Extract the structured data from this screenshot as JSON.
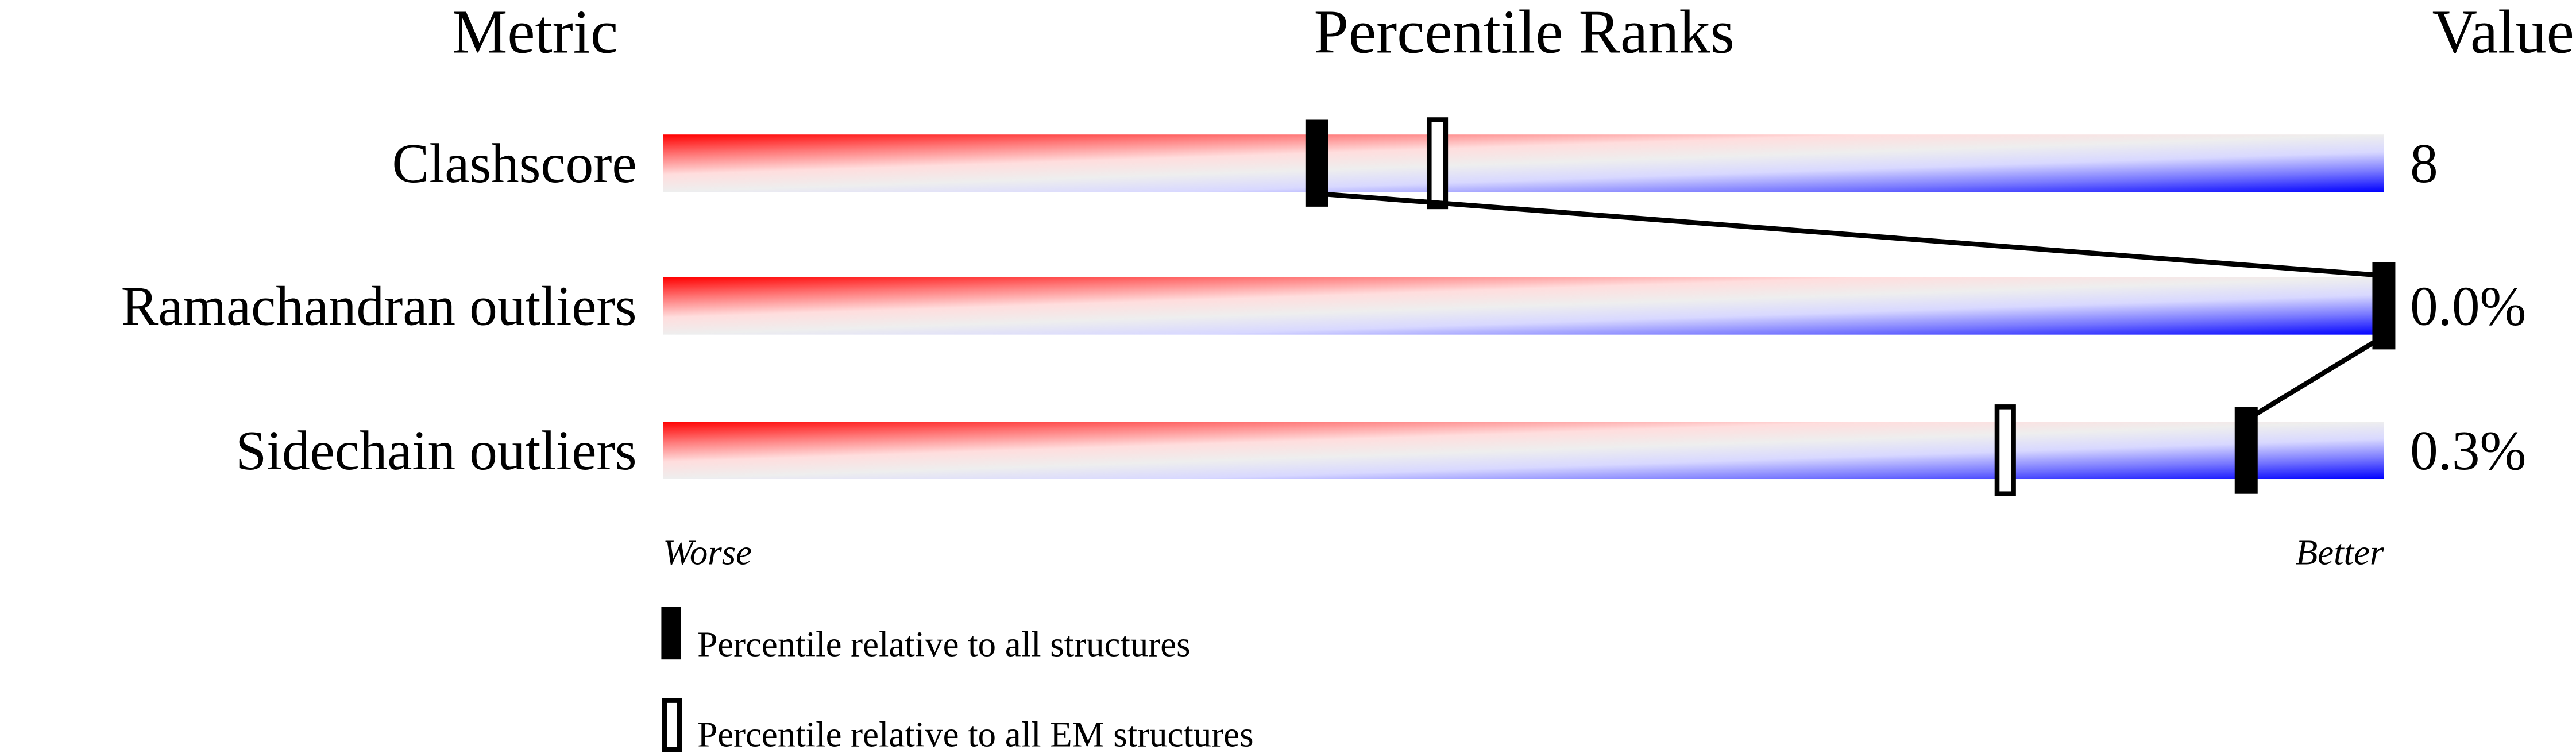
{
  "chart_data": {
    "type": "table",
    "headers": {
      "metric": "Metric",
      "ranks": "Percentile Ranks",
      "value": "Value"
    },
    "xlim": [
      0,
      100
    ],
    "axis_labels": {
      "worse": "Worse",
      "better": "Better"
    },
    "rows": [
      {
        "metric": "Clashscore",
        "value": "8",
        "percentile_all": 38,
        "percentile_em": 45
      },
      {
        "metric": "Ramachandran outliers",
        "value": "0.0%",
        "percentile_all": 100,
        "percentile_em": 100
      },
      {
        "metric": "Sidechain outliers",
        "value": "0.3%",
        "percentile_all": 92,
        "percentile_em": 78
      }
    ],
    "legend": [
      {
        "marker": "filled",
        "label": "Percentile relative to all structures"
      },
      {
        "marker": "open",
        "label": "Percentile relative to all EM structures"
      }
    ],
    "colors": {
      "worse": "#ff0000",
      "middle": "#eeeeee",
      "better": "#0000ff",
      "marker": "#000000"
    }
  }
}
